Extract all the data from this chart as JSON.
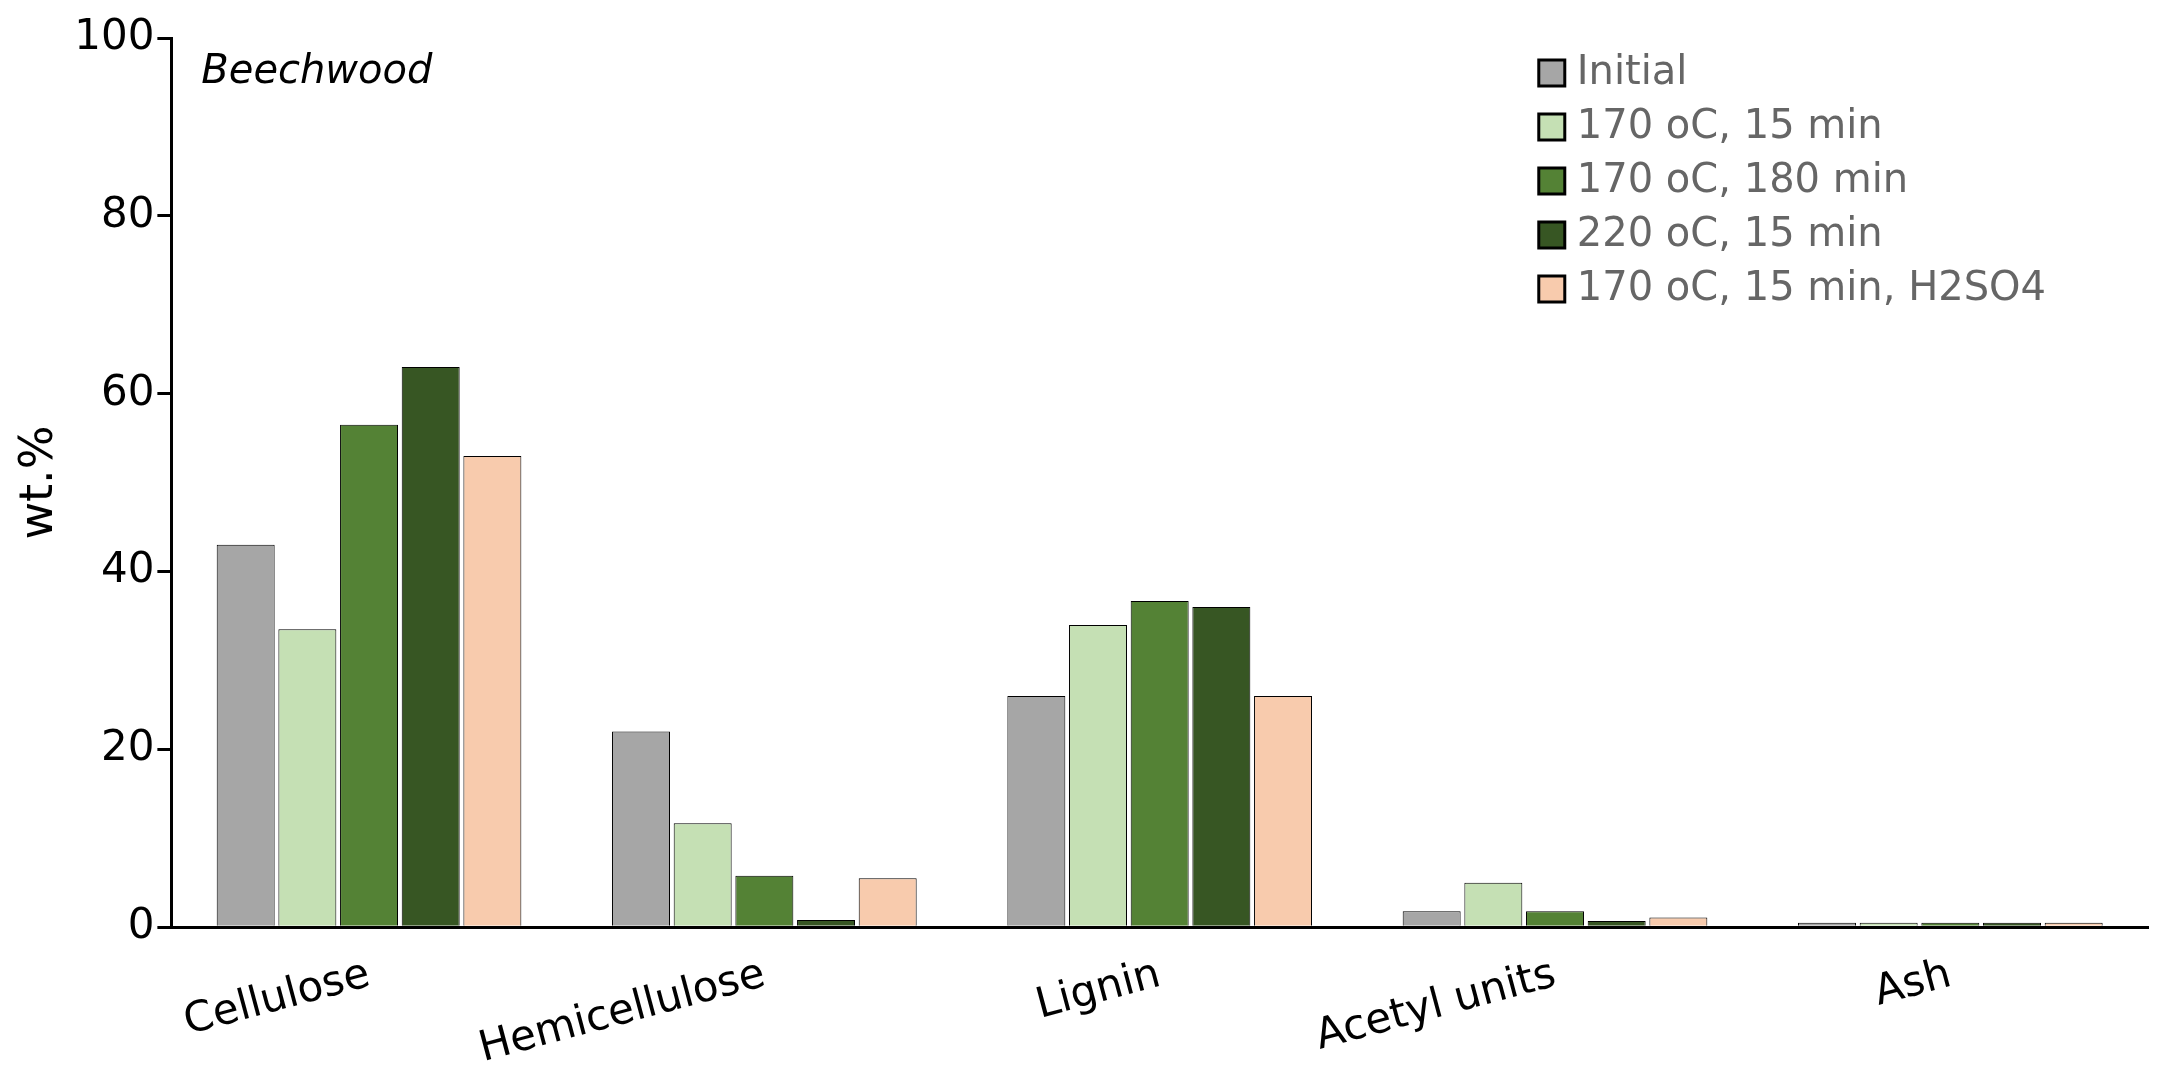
{
  "chart_data": {
    "type": "bar",
    "ylabel": "wt.%",
    "annotations": [
      "Beechwood"
    ],
    "categories": [
      "Cellulose",
      "Hemicellulose",
      "Lignin",
      "Acetyl units",
      "Ash"
    ],
    "series": [
      {
        "name": "Initial",
        "color": "#a6a6a6",
        "values": [
          43,
          22,
          26,
          1.8,
          0.5
        ]
      },
      {
        "name": "170 oC, 15 min",
        "color": "#c5e0b4",
        "values": [
          33.5,
          11.7,
          34,
          5,
          0.5
        ]
      },
      {
        "name": "170 oC, 180 min",
        "color": "#548235",
        "values": [
          56.5,
          5.8,
          36.7,
          1.8,
          0.5
        ]
      },
      {
        "name": "220 oC, 15 min",
        "color": "#375623",
        "values": [
          63,
          0.8,
          36,
          0.7,
          0.5
        ]
      },
      {
        "name": "170 oC, 15 min, H2SO4",
        "color": "#f8cbad",
        "values": [
          53,
          5.5,
          26,
          1.1,
          0.5
        ]
      }
    ],
    "ylim": [
      0,
      100
    ],
    "yticks": [
      0,
      20,
      40,
      60,
      80,
      100
    ],
    "grid": false,
    "legend": "top right"
  }
}
